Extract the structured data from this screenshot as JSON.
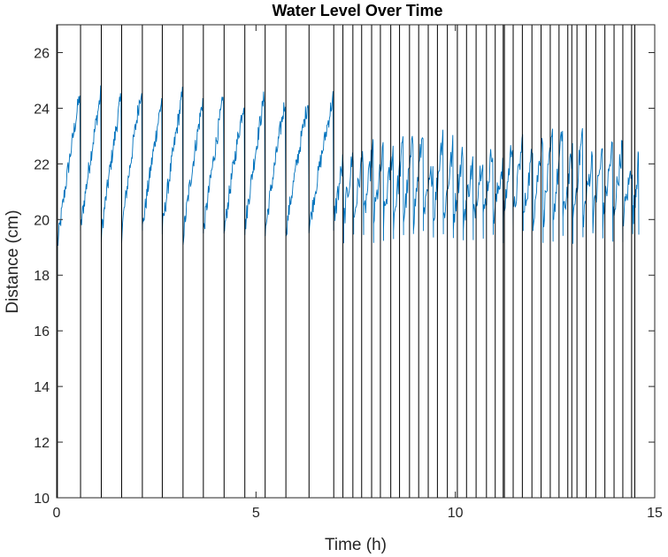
{
  "chart_data": {
    "type": "line",
    "title": "Water Level Over Time",
    "xlabel": "Time (h)",
    "ylabel": "Distance (cm)",
    "xlim": [
      0,
      15
    ],
    "ylim": [
      10,
      27
    ],
    "x_ticks": [
      0,
      5,
      10,
      15
    ],
    "y_ticks": [
      10,
      12,
      14,
      16,
      18,
      20,
      22,
      24,
      26
    ],
    "grid": false,
    "legend": "none",
    "series_color": "#0072BD",
    "spike_color": "#000000",
    "series": [
      {
        "description_of_shape": "sawtooth",
        "phase1": {
          "x_range": [
            0,
            6.95
          ],
          "cycle_starts": [
            0.02,
            0.6,
            1.12,
            1.63,
            2.15,
            2.65,
            3.17,
            3.68,
            4.2,
            4.72,
            5.23,
            5.75,
            6.33,
            6.95
          ],
          "min_values": [
            19.0,
            19.6,
            19.4,
            19.5,
            19.6,
            19.6,
            19.3,
            19.5,
            19.5,
            19.6,
            19.5,
            19.5,
            19.6
          ],
          "max_values": [
            24.5,
            24.5,
            24.4,
            24.8,
            24.3,
            24.5,
            24.3,
            24.4,
            24.3,
            24.5,
            24.3,
            24.3,
            24.4
          ]
        },
        "phase2": {
          "x_range": [
            6.95,
            14.6
          ],
          "cycle_starts": [
            6.95,
            7.2,
            7.45,
            7.7,
            7.95,
            8.2,
            8.45,
            8.7,
            8.95,
            9.2,
            9.45,
            9.7,
            9.95,
            10.2,
            10.45,
            10.7,
            10.95,
            11.2,
            11.45,
            11.7,
            11.95,
            12.2,
            12.45,
            12.7,
            12.95,
            13.2,
            13.45,
            13.7,
            13.95,
            14.2,
            14.45,
            14.6
          ],
          "min_value": 19.6,
          "max_value": 23.3
        },
        "spike_times": [
          0.02,
          0.6,
          1.12,
          1.63,
          2.15,
          2.65,
          3.17,
          3.68,
          4.2,
          4.72,
          5.23,
          5.75,
          6.33,
          6.95,
          7.18,
          7.43,
          7.65,
          7.9,
          8.12,
          8.38,
          8.6,
          8.85,
          9.08,
          9.32,
          9.55,
          9.8,
          10.05,
          10.28,
          10.52,
          10.78,
          11.0,
          11.2,
          11.23,
          11.45,
          11.68,
          11.92,
          12.15,
          12.38,
          12.6,
          12.82,
          12.92,
          13.05,
          13.28,
          13.52,
          13.75,
          13.98,
          14.2,
          14.42,
          14.5
        ]
      }
    ]
  }
}
